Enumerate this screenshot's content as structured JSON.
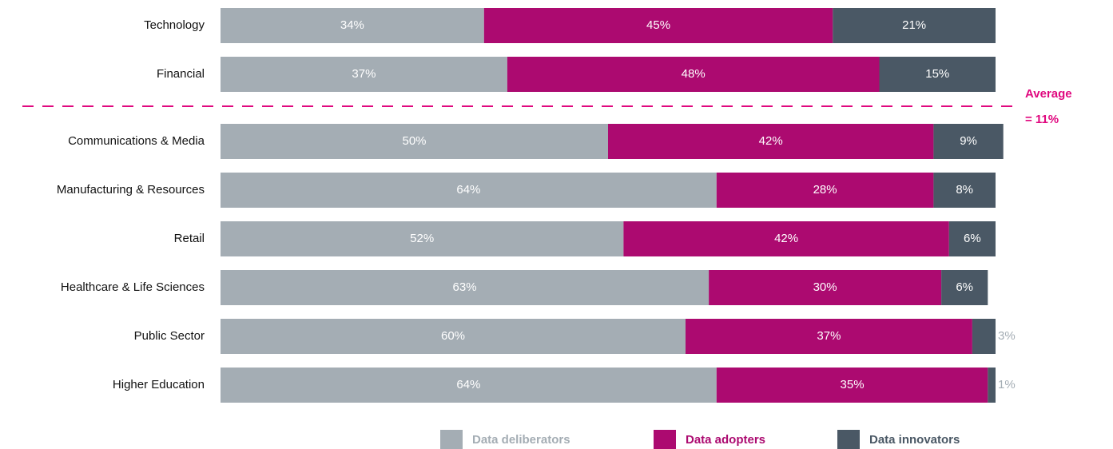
{
  "chart_data": {
    "type": "stacked-bar-horizontal",
    "categories": [
      "Technology",
      "Financial",
      "Communications & Media",
      "Manufacturing & Resources",
      "Retail",
      "Healthcare & Life Sciences",
      "Public Sector",
      "Higher Education"
    ],
    "series": [
      {
        "name": "Data deliberators",
        "color": "#a4adb4",
        "values": [
          34,
          37,
          50,
          64,
          52,
          63,
          60,
          64
        ],
        "value_labels": [
          "34%",
          "37%",
          "50%",
          "64%",
          "52%",
          "63%",
          "60%",
          "64%"
        ]
      },
      {
        "name": "Data adopters",
        "color": "#ac0a70",
        "values": [
          45,
          48,
          42,
          28,
          42,
          30,
          37,
          35
        ],
        "value_labels": [
          "45%",
          "48%",
          "42%",
          "28%",
          "42%",
          "30%",
          "37%",
          "35%"
        ]
      },
      {
        "name": "Data innovators",
        "color": "#4a5865",
        "values": [
          21,
          15,
          9,
          8,
          6,
          6,
          3,
          1
        ],
        "value_labels": [
          "21%",
          "15%",
          "9%",
          "8%",
          "6%",
          "6%",
          "3%",
          "1%"
        ]
      }
    ],
    "xlim": [
      0,
      100
    ],
    "annotation": {
      "lines": [
        "Average",
        "= 11%"
      ],
      "color": "#e0087f"
    }
  }
}
